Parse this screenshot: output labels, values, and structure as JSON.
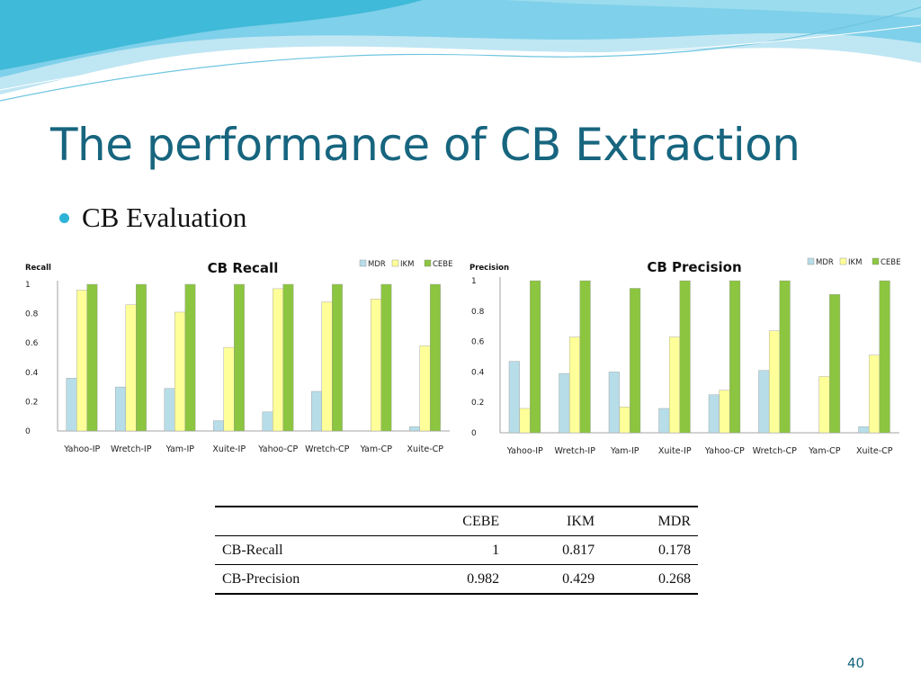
{
  "slide": {
    "title": "The performance of CB Extraction",
    "bullet": "CB Evaluation",
    "page_number": "40"
  },
  "legend": [
    "MDR",
    "IKM",
    "CEBE"
  ],
  "colors": {
    "MDR": "#b7dde8",
    "IKM": "#ffff99",
    "CEBE": "#8cc540",
    "title": "#17657f",
    "wave": "#3fbad8"
  },
  "chart_data": [
    {
      "type": "bar",
      "title": "CB Recall",
      "ylabel": "Recall",
      "ylim": [
        0,
        1
      ],
      "yticks": [
        "0",
        "0.2",
        "0.4",
        "0.6",
        "0.8",
        "1"
      ],
      "grid": false,
      "legend_position": "top-right",
      "categories": [
        "Yahoo-IP",
        "Wretch-IP",
        "Yam-IP",
        "Xuite-IP",
        "Yahoo-CP",
        "Wretch-CP",
        "Yam-CP",
        "Xuite-CP"
      ],
      "series": [
        {
          "name": "MDR",
          "values": [
            0.36,
            0.3,
            0.29,
            0.07,
            0.13,
            0.27,
            0,
            0.03
          ]
        },
        {
          "name": "IKM",
          "values": [
            0.96,
            0.86,
            0.81,
            0.57,
            0.97,
            0.88,
            0.9,
            0.58
          ]
        },
        {
          "name": "CEBE",
          "values": [
            1,
            1,
            1,
            1,
            1,
            1,
            1,
            1
          ]
        }
      ]
    },
    {
      "type": "bar",
      "title": "CB Precision",
      "ylabel": "Precision",
      "ylim": [
        0,
        1
      ],
      "yticks": [
        "0",
        "0.2",
        "0.4",
        "0.6",
        "0.8",
        "1"
      ],
      "grid": false,
      "legend_position": "top-right",
      "categories": [
        "Yahoo-IP",
        "Wretch-IP",
        "Yam-IP",
        "Xuite-IP",
        "Yahoo-CP",
        "Wretch-CP",
        "Yam-CP",
        "Xuite-CP"
      ],
      "series": [
        {
          "name": "MDR",
          "values": [
            0.47,
            0.39,
            0.4,
            0.16,
            0.25,
            0.41,
            0,
            0.04
          ]
        },
        {
          "name": "IKM",
          "values": [
            0.16,
            0.63,
            0.17,
            0.63,
            0.28,
            0.67,
            0.37,
            0.51
          ]
        },
        {
          "name": "CEBE",
          "values": [
            1,
            1,
            0.95,
            1,
            1,
            1,
            0.91,
            1
          ]
        }
      ]
    }
  ],
  "table": {
    "headers": [
      "",
      "CEBE",
      "IKM",
      "MDR"
    ],
    "rows": [
      {
        "label": "CB-Recall",
        "cebe": "1",
        "ikm": "0.817",
        "mdr": "0.178"
      },
      {
        "label": "CB-Precision",
        "cebe": "0.982",
        "ikm": "0.429",
        "mdr": "0.268"
      }
    ]
  }
}
